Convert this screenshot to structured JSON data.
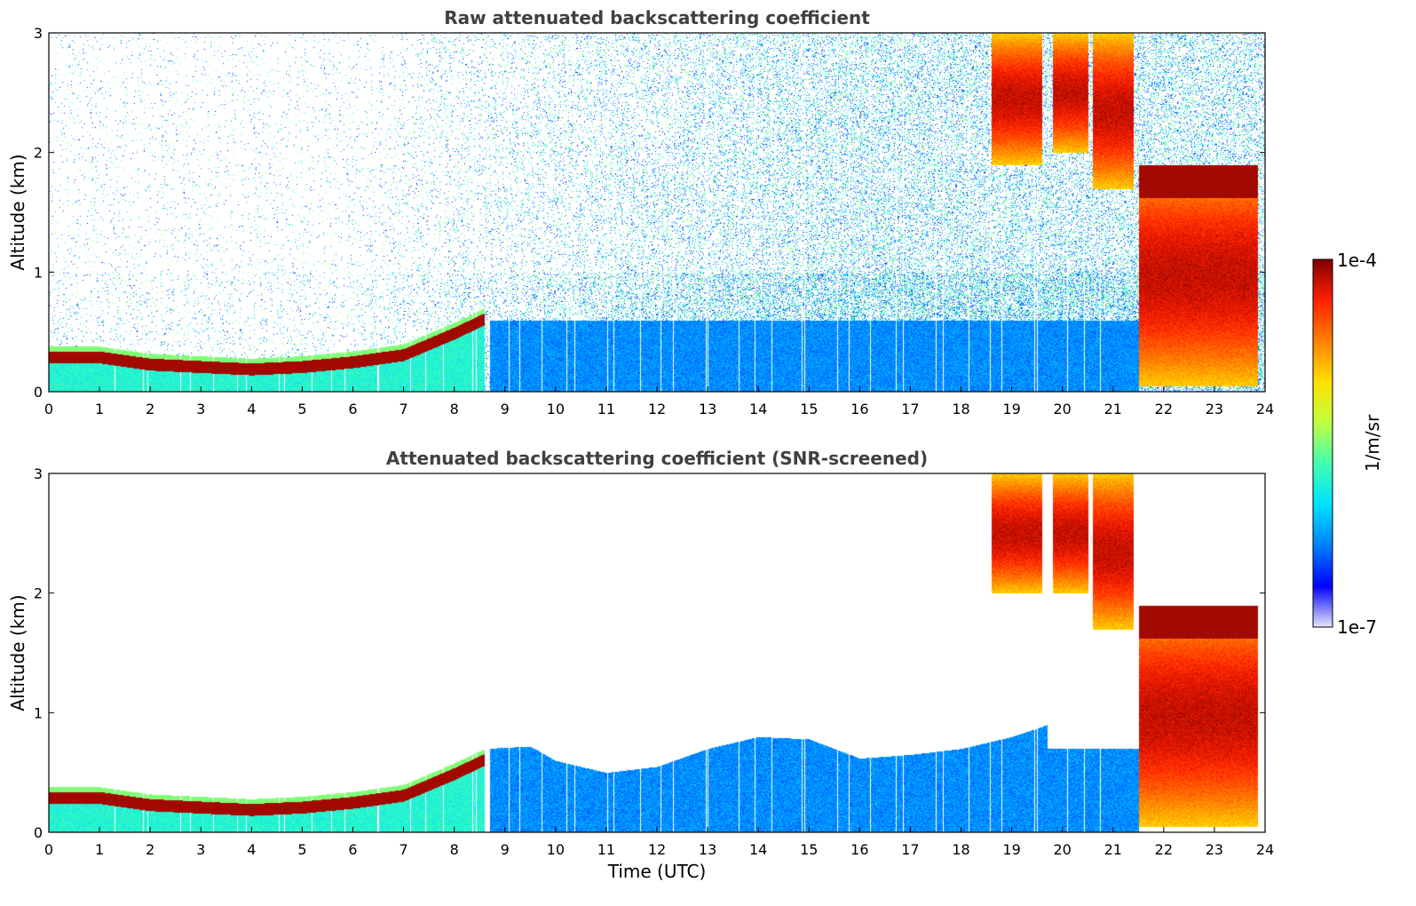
{
  "chart_data": [
    {
      "type": "heatmap",
      "title": "Raw attenuated backscattering coefficient",
      "xlabel": "",
      "ylabel": "Altitude (km)",
      "xlim": [
        0,
        24
      ],
      "ylim": [
        0,
        3
      ],
      "x_ticks": [
        "0",
        "1",
        "2",
        "3",
        "4",
        "5",
        "6",
        "7",
        "8",
        "9",
        "10",
        "11",
        "12",
        "13",
        "14",
        "15",
        "16",
        "17",
        "18",
        "19",
        "20",
        "21",
        "22",
        "23",
        "24"
      ],
      "y_ticks": [
        "0",
        "1",
        "2",
        "3"
      ],
      "screened": false,
      "noise_level": 0.55,
      "boundary_layer_top_km": [
        {
          "t": 0,
          "z": 0.3
        },
        {
          "t": 1,
          "z": 0.3
        },
        {
          "t": 2,
          "z": 0.24
        },
        {
          "t": 3,
          "z": 0.22
        },
        {
          "t": 4,
          "z": 0.2
        },
        {
          "t": 5,
          "z": 0.22
        },
        {
          "t": 6,
          "z": 0.26
        },
        {
          "t": 7,
          "z": 0.32
        },
        {
          "t": 8,
          "z": 0.5
        },
        {
          "t": 8.6,
          "z": 0.62
        }
      ],
      "clouds": [
        {
          "t_start": 18.6,
          "t_end": 19.6,
          "z_bottom": 1.9,
          "z_top": 3.0
        },
        {
          "t_start": 19.8,
          "t_end": 20.5,
          "z_bottom": 2.0,
          "z_top": 3.0
        },
        {
          "t_start": 20.6,
          "t_end": 21.4,
          "z_bottom": 1.7,
          "z_top": 3.0
        },
        {
          "t_start": 21.5,
          "t_end": 23.2,
          "z_bottom": 0.05,
          "z_top": 1.9
        },
        {
          "t_start": 23.2,
          "t_end": 23.85,
          "z_bottom": 0.05,
          "z_top": 1.9
        }
      ]
    },
    {
      "type": "heatmap",
      "title": "Attenuated backscattering coefficient (SNR-screened)",
      "xlabel": "Time (UTC)",
      "ylabel": "Altitude (km)",
      "xlim": [
        0,
        24
      ],
      "ylim": [
        0,
        3
      ],
      "x_ticks": [
        "0",
        "1",
        "2",
        "3",
        "4",
        "5",
        "6",
        "7",
        "8",
        "9",
        "10",
        "11",
        "12",
        "13",
        "14",
        "15",
        "16",
        "17",
        "18",
        "19",
        "20",
        "21",
        "22",
        "23",
        "24"
      ],
      "y_ticks": [
        "0",
        "1",
        "2",
        "3"
      ],
      "screened": true,
      "noise_level": 0.0,
      "boundary_layer_top_km": [
        {
          "t": 0,
          "z": 0.3
        },
        {
          "t": 1,
          "z": 0.3
        },
        {
          "t": 2,
          "z": 0.24
        },
        {
          "t": 3,
          "z": 0.22
        },
        {
          "t": 4,
          "z": 0.2
        },
        {
          "t": 5,
          "z": 0.22
        },
        {
          "t": 6,
          "z": 0.26
        },
        {
          "t": 7,
          "z": 0.32
        },
        {
          "t": 8,
          "z": 0.5
        },
        {
          "t": 8.6,
          "z": 0.62
        }
      ],
      "screened_top_km": [
        {
          "t": 8.6,
          "z": 0.7
        },
        {
          "t": 9.5,
          "z": 0.72
        },
        {
          "t": 10,
          "z": 0.6
        },
        {
          "t": 11,
          "z": 0.5
        },
        {
          "t": 12,
          "z": 0.55
        },
        {
          "t": 13,
          "z": 0.7
        },
        {
          "t": 14,
          "z": 0.8
        },
        {
          "t": 15,
          "z": 0.78
        },
        {
          "t": 16,
          "z": 0.62
        },
        {
          "t": 17,
          "z": 0.65
        },
        {
          "t": 18,
          "z": 0.7
        },
        {
          "t": 19,
          "z": 0.8
        },
        {
          "t": 19.7,
          "z": 0.9
        }
      ],
      "clouds": [
        {
          "t_start": 18.6,
          "t_end": 19.6,
          "z_bottom": 2.0,
          "z_top": 3.0
        },
        {
          "t_start": 19.8,
          "t_end": 20.5,
          "z_bottom": 2.0,
          "z_top": 3.0
        },
        {
          "t_start": 20.6,
          "t_end": 21.4,
          "z_bottom": 1.7,
          "z_top": 3.0
        },
        {
          "t_start": 21.5,
          "t_end": 23.2,
          "z_bottom": 0.05,
          "z_top": 1.9
        },
        {
          "t_start": 23.2,
          "t_end": 23.85,
          "z_bottom": 0.05,
          "z_top": 1.9
        }
      ]
    }
  ],
  "colorbar": {
    "label": "1/m/sr",
    "max_label": "1e-4",
    "min_label": "1e-7",
    "scale": "log",
    "min": 1e-07,
    "max": 0.0001,
    "colormap": "jet",
    "colors": [
      "#e6e6f8",
      "#0000ff",
      "#0080ff",
      "#00e0ff",
      "#40ffb0",
      "#c0ff40",
      "#ffe000",
      "#ff8000",
      "#ff2000",
      "#800000"
    ]
  }
}
